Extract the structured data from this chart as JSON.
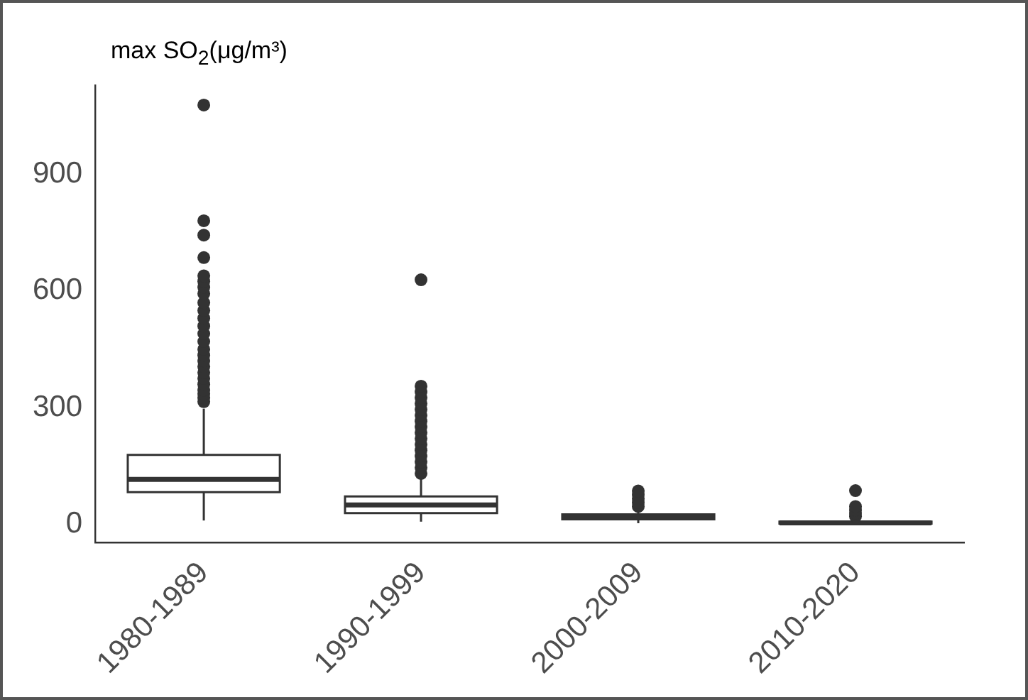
{
  "chart_data": {
    "type": "box",
    "ylabel": "max SO$_{2}$(μg/m³)",
    "categories": [
      "1980-1989",
      "1990-1999",
      "2000-2009",
      "2010-2020"
    ],
    "boxes": [
      {
        "low": 9,
        "q1": 82,
        "median": 115,
        "q3": 178,
        "high": 297,
        "outliers": [
          315,
          325,
          335,
          345,
          360,
          375,
          390,
          405,
          420,
          435,
          450,
          470,
          490,
          510,
          530,
          550,
          570,
          593,
          610,
          625,
          639,
          686,
          744,
          781,
          1079
        ]
      },
      {
        "low": 6,
        "q1": 28,
        "median": 49,
        "q3": 71,
        "high": 122,
        "outliers": [
          130,
          145,
          160,
          175,
          190,
          205,
          220,
          235,
          250,
          265,
          280,
          295,
          310,
          325,
          340,
          355,
          629
        ]
      },
      {
        "low": 2,
        "q1": 12,
        "median": 18,
        "q3": 25,
        "high": 40,
        "outliers": [
          45,
          55,
          65,
          75,
          85
        ]
      },
      {
        "low": 0,
        "q1": 1,
        "median": 3,
        "q3": 6,
        "high": 15,
        "outliers": [
          20,
          28,
          36,
          45,
          86
        ]
      }
    ],
    "ylim": [
      -48,
      1130
    ],
    "yticks": [
      0,
      300,
      600,
      900
    ],
    "grid": false,
    "legend": false
  }
}
